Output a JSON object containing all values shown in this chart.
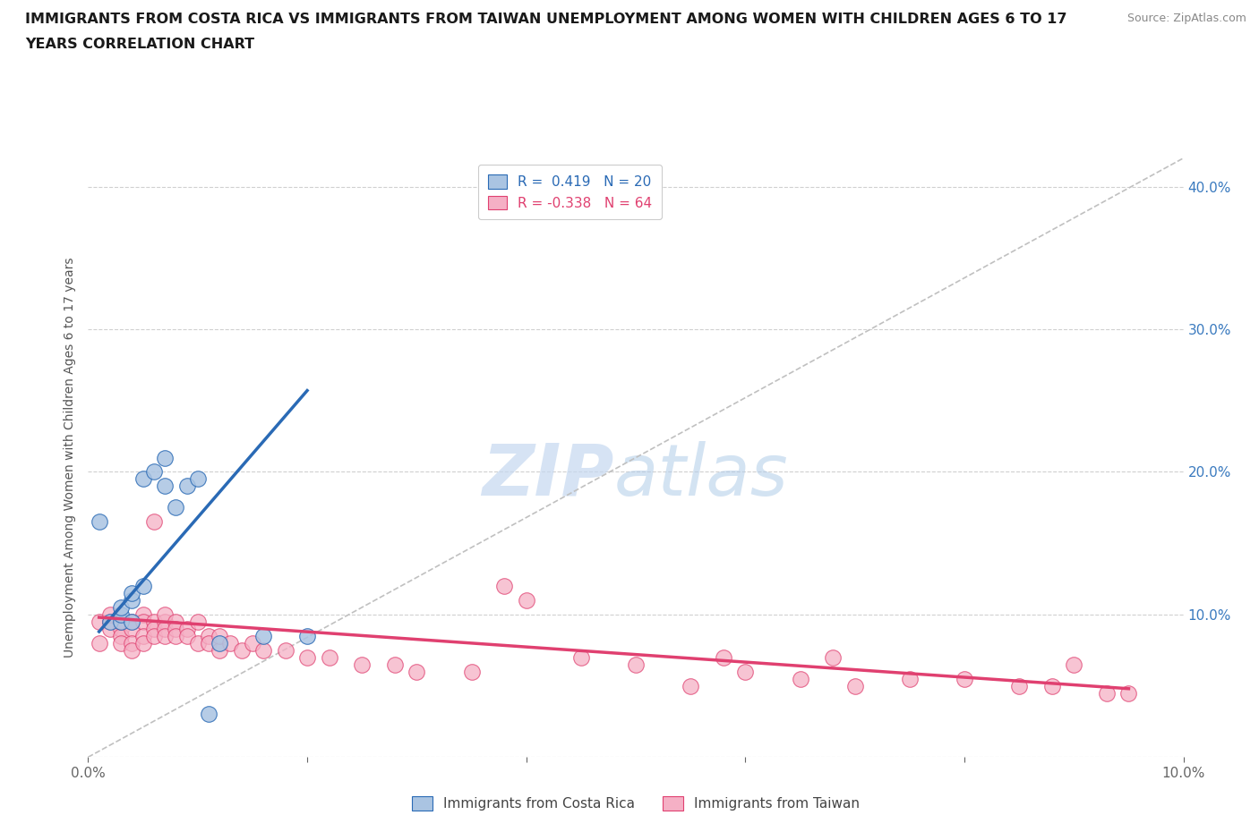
{
  "title_line1": "IMMIGRANTS FROM COSTA RICA VS IMMIGRANTS FROM TAIWAN UNEMPLOYMENT AMONG WOMEN WITH CHILDREN AGES 6 TO 17",
  "title_line2": "YEARS CORRELATION CHART",
  "source": "Source: ZipAtlas.com",
  "ylabel": "Unemployment Among Women with Children Ages 6 to 17 years",
  "xlim": [
    0.0,
    0.1
  ],
  "ylim": [
    0.0,
    0.42
  ],
  "x_ticks": [
    0.0,
    0.02,
    0.04,
    0.06,
    0.08,
    0.1
  ],
  "y_ticks": [
    0.0,
    0.1,
    0.2,
    0.3,
    0.4
  ],
  "costa_rica_color": "#aac4e2",
  "taiwan_color": "#f5b0c5",
  "costa_rica_line_color": "#2a6ab5",
  "taiwan_line_color": "#e04070",
  "diagonal_color": "#c0c0c0",
  "costa_rica_x": [
    0.001,
    0.002,
    0.003,
    0.003,
    0.003,
    0.004,
    0.004,
    0.004,
    0.005,
    0.005,
    0.006,
    0.007,
    0.007,
    0.008,
    0.009,
    0.01,
    0.011,
    0.012,
    0.016,
    0.02
  ],
  "costa_rica_y": [
    0.165,
    0.095,
    0.095,
    0.1,
    0.105,
    0.095,
    0.11,
    0.115,
    0.12,
    0.195,
    0.2,
    0.19,
    0.21,
    0.175,
    0.19,
    0.195,
    0.03,
    0.08,
    0.085,
    0.085
  ],
  "taiwan_x": [
    0.001,
    0.001,
    0.002,
    0.002,
    0.002,
    0.003,
    0.003,
    0.003,
    0.003,
    0.004,
    0.004,
    0.004,
    0.004,
    0.005,
    0.005,
    0.005,
    0.005,
    0.006,
    0.006,
    0.006,
    0.006,
    0.007,
    0.007,
    0.007,
    0.007,
    0.008,
    0.008,
    0.008,
    0.009,
    0.009,
    0.01,
    0.01,
    0.011,
    0.011,
    0.012,
    0.012,
    0.013,
    0.014,
    0.015,
    0.016,
    0.018,
    0.02,
    0.022,
    0.025,
    0.028,
    0.03,
    0.035,
    0.038,
    0.04,
    0.045,
    0.05,
    0.055,
    0.058,
    0.06,
    0.065,
    0.068,
    0.07,
    0.075,
    0.08,
    0.085,
    0.088,
    0.09,
    0.093,
    0.095
  ],
  "taiwan_y": [
    0.095,
    0.08,
    0.095,
    0.09,
    0.1,
    0.09,
    0.085,
    0.095,
    0.08,
    0.095,
    0.09,
    0.08,
    0.075,
    0.1,
    0.095,
    0.085,
    0.08,
    0.165,
    0.095,
    0.09,
    0.085,
    0.095,
    0.09,
    0.085,
    0.1,
    0.095,
    0.09,
    0.085,
    0.09,
    0.085,
    0.095,
    0.08,
    0.085,
    0.08,
    0.075,
    0.085,
    0.08,
    0.075,
    0.08,
    0.075,
    0.075,
    0.07,
    0.07,
    0.065,
    0.065,
    0.06,
    0.06,
    0.12,
    0.11,
    0.07,
    0.065,
    0.05,
    0.07,
    0.06,
    0.055,
    0.07,
    0.05,
    0.055,
    0.055,
    0.05,
    0.05,
    0.065,
    0.045,
    0.045
  ],
  "cr_line_x": [
    0.001,
    0.02
  ],
  "cr_line_y": [
    0.088,
    0.257
  ],
  "tw_line_x": [
    0.001,
    0.095
  ],
  "tw_line_y": [
    0.098,
    0.048
  ]
}
